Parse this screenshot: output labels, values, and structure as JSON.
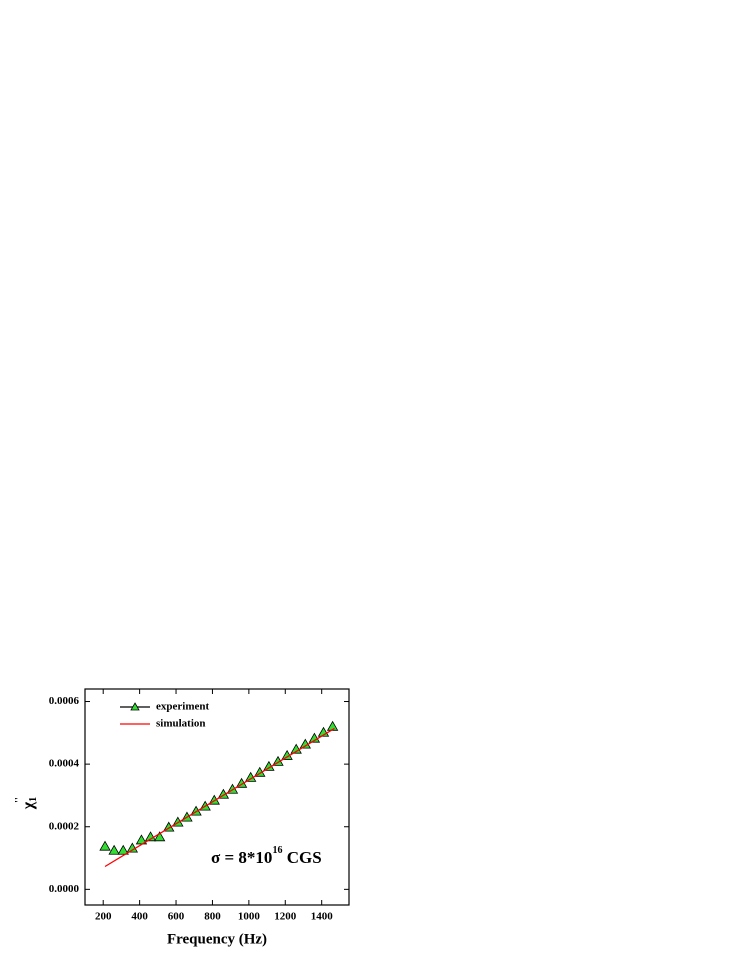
{
  "chart_data": {
    "type": "scatter",
    "xlabel": "Frequency (Hz)",
    "ylabel": {
      "base": "χ",
      "sub": "1",
      "sup": "''"
    },
    "annotation": {
      "text": "σ = 8*10",
      "sup": "16",
      "tail": " CGS"
    },
    "xlim": [
      100,
      1550
    ],
    "xticks": [
      200,
      400,
      600,
      800,
      1000,
      1200,
      1400
    ],
    "ylim": [
      -5e-05,
      0.00064
    ],
    "yticks": [
      {
        "value": 0,
        "label": "0.0000"
      },
      {
        "value": 0.0002,
        "label": "0.0002"
      },
      {
        "value": 0.0004,
        "label": "0.0004"
      },
      {
        "value": 0.0006,
        "label": "0.0006"
      }
    ],
    "legend": "upper left",
    "series": [
      {
        "name": "experiment",
        "color": "#000000",
        "marker_color": "#33dd33",
        "marker": "triangle",
        "x": [
          210,
          260,
          310,
          360,
          410,
          460,
          510,
          560,
          610,
          660,
          710,
          760,
          810,
          860,
          910,
          960,
          1010,
          1060,
          1110,
          1160,
          1210,
          1260,
          1310,
          1360,
          1410,
          1460
        ],
        "values": [
          0.000137,
          0.000124,
          0.000124,
          0.000131,
          0.000157,
          0.000167,
          0.000167,
          0.000198,
          0.000214,
          0.00023,
          0.000249,
          0.000265,
          0.000284,
          0.000303,
          0.000319,
          0.000338,
          0.000357,
          0.000373,
          0.000392,
          0.000408,
          0.000427,
          0.000447,
          0.000463,
          0.000482,
          0.000501,
          0.00052
        ]
      },
      {
        "name": "simulation",
        "color": "#ff0000",
        "marker": "none",
        "x": [
          210,
          1470
        ],
        "values": [
          7.3e-05,
          0.000514
        ]
      }
    ]
  }
}
